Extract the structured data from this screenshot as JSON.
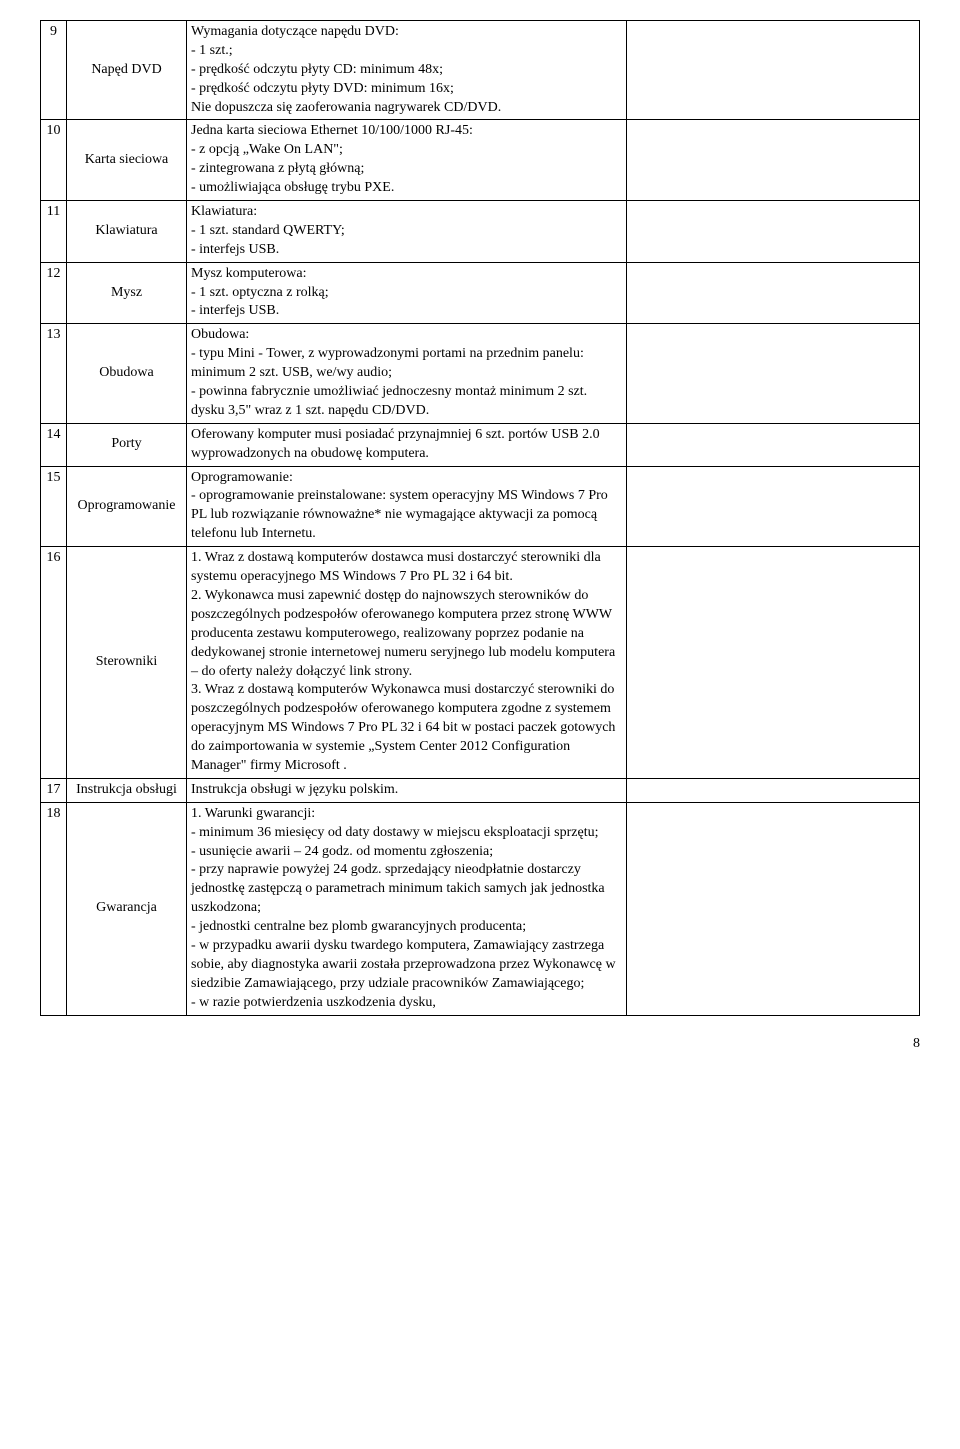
{
  "page_number": "8",
  "rows": [
    {
      "num": "9",
      "name": "Napęd DVD",
      "desc": "Wymagania dotyczące napędu DVD:\n- 1 szt.;\n- prędkość odczytu płyty CD: minimum 48x;\n- prędkość odczytu płyty DVD: minimum 16x;\nNie dopuszcza się zaoferowania nagrywarek CD/DVD."
    },
    {
      "num": "10",
      "name": "Karta sieciowa",
      "desc": "Jedna karta sieciowa Ethernet 10/100/1000 RJ-45:\n- z opcją „Wake On LAN\";\n- zintegrowana z płytą główną;\n- umożliwiająca obsługę trybu PXE."
    },
    {
      "num": "11",
      "name": "Klawiatura",
      "desc": "Klawiatura:\n- 1 szt. standard QWERTY;\n- interfejs USB."
    },
    {
      "num": "12",
      "name": "Mysz",
      "desc": "Mysz komputerowa:\n- 1 szt. optyczna z rolką;\n- interfejs USB."
    },
    {
      "num": "13",
      "name": "Obudowa",
      "desc": "Obudowa:\n- typu Mini - Tower, z wyprowadzonymi portami na przednim panelu: minimum 2 szt. USB, we/wy audio;\n- powinna fabrycznie umożliwiać jednoczesny montaż minimum 2 szt. dysku 3,5\" wraz z 1 szt. napędu CD/DVD."
    },
    {
      "num": "14",
      "name": "Porty",
      "desc": "Oferowany komputer musi posiadać przynajmniej 6 szt. portów USB 2.0 wyprowadzonych na obudowę komputera."
    },
    {
      "num": "15",
      "name": "Oprogramowanie",
      "desc": "Oprogramowanie:\n- oprogramowanie preinstalowane: system operacyjny MS Windows 7 Pro PL lub rozwiązanie równoważne* nie wymagające aktywacji za pomocą telefonu lub Internetu."
    },
    {
      "num": "16",
      "name": "Sterowniki",
      "desc": "1. Wraz z dostawą komputerów dostawca musi dostarczyć sterowniki dla systemu operacyjnego MS Windows 7 Pro PL 32 i 64 bit.\n2. Wykonawca musi zapewnić dostęp do najnowszych sterowników do poszczególnych podzespołów oferowanego komputera przez stronę WWW producenta zestawu komputerowego, realizowany poprzez podanie na dedykowanej stronie internetowej numeru seryjnego lub modelu komputera – do oferty należy dołączyć link strony.\n3. Wraz z dostawą komputerów Wykonawca musi dostarczyć sterowniki do poszczególnych podzespołów oferowanego komputera zgodne z systemem operacyjnym MS Windows 7 Pro PL 32 i 64 bit  w postaci paczek gotowych do zaimportowania w systemie „System Center 2012 Configuration Manager\" firmy Microsoft ."
    },
    {
      "num": "17",
      "name": "Instrukcja obsługi",
      "desc": "Instrukcja obsługi w języku polskim."
    },
    {
      "num": "18",
      "name": "Gwarancja",
      "desc": "1. Warunki gwarancji:\n- minimum 36 miesięcy od daty dostawy w miejscu eksploatacji sprzętu;\n- usunięcie awarii – 24 godz. od momentu zgłoszenia;\n- przy naprawie powyżej 24 godz. sprzedający nieodpłatnie dostarczy jednostkę zastępczą o parametrach minimum takich samych jak jednostka uszkodzona;\n- jednostki centralne bez plomb gwarancyjnych producenta;\n- w przypadku awarii dysku twardego komputera, Zamawiający zastrzega sobie, aby diagnostyka awarii została przeprowadzona przez Wykonawcę w siedzibie Zamawiającego, przy udziale pracowników Zamawiającego;\n- w razie potwierdzenia uszkodzenia dysku,"
    }
  ]
}
